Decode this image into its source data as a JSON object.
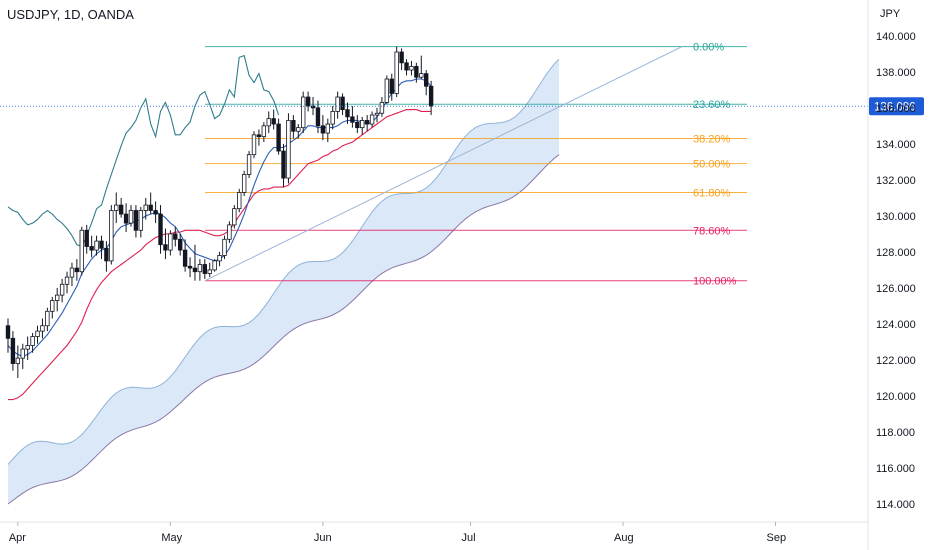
{
  "header": {
    "symbol_line": "USDJPY, 1D, OANDA"
  },
  "chart_data": {
    "type": "candlestick",
    "currency_label": "JPY",
    "price_badge": {
      "value": 136.086,
      "label": "136.086"
    },
    "ylim": [
      113,
      141.6
    ],
    "y_ticks": [
      {
        "v": 140,
        "label": "140.000"
      },
      {
        "v": 138,
        "label": "138.000"
      },
      {
        "v": 136,
        "label": "136.000"
      },
      {
        "v": 134,
        "label": "134.000"
      },
      {
        "v": 132,
        "label": "132.000"
      },
      {
        "v": 130,
        "label": "130.000"
      },
      {
        "v": 128,
        "label": "128.000"
      },
      {
        "v": 126,
        "label": "126.000"
      },
      {
        "v": 124,
        "label": "124.000"
      },
      {
        "v": 122,
        "label": "122.000"
      },
      {
        "v": 120,
        "label": "120.000"
      },
      {
        "v": 118,
        "label": "118.000"
      },
      {
        "v": 116,
        "label": "116.000"
      },
      {
        "v": 114,
        "label": "114.000"
      }
    ],
    "x_ticks": [
      {
        "label": "Apr",
        "i": 2
      },
      {
        "label": "May",
        "i": 33
      },
      {
        "label": "Jun",
        "i": 64
      },
      {
        "label": "Jul",
        "i": 94
      },
      {
        "label": "Aug",
        "i": 125
      },
      {
        "label": "Sep",
        "i": 156
      }
    ],
    "fib_levels": [
      {
        "label": "0.00%",
        "price": 139.4,
        "color": "#26a69a"
      },
      {
        "label": "23.60%",
        "price": 136.2,
        "color": "#26a69a"
      },
      {
        "label": "38.20%",
        "price": 134.3,
        "color": "#f7a21b"
      },
      {
        "label": "50.00%",
        "price": 132.9,
        "color": "#f7a21b"
      },
      {
        "label": "61.80%",
        "price": 131.3,
        "color": "#f7a21b"
      },
      {
        "label": "78.60%",
        "price": 129.2,
        "color": "#e91e63"
      },
      {
        "label": "100.00%",
        "price": 126.4,
        "color": "#e91e63"
      }
    ],
    "ohlc": [
      [
        123.9,
        124.3,
        122.4,
        123.2
      ],
      [
        123.2,
        123.6,
        121.4,
        121.8
      ],
      [
        121.8,
        122.8,
        121.0,
        122.1
      ],
      [
        122.1,
        122.9,
        121.5,
        122.6
      ],
      [
        122.6,
        123.3,
        122.0,
        122.8
      ],
      [
        122.8,
        123.5,
        122.4,
        123.3
      ],
      [
        123.3,
        123.9,
        122.9,
        123.6
      ],
      [
        123.6,
        124.3,
        123.2,
        123.9
      ],
      [
        123.9,
        124.9,
        123.6,
        124.7
      ],
      [
        124.7,
        125.5,
        124.3,
        125.3
      ],
      [
        125.3,
        126.0,
        124.7,
        125.6
      ],
      [
        125.6,
        126.5,
        125.2,
        126.2
      ],
      [
        126.2,
        126.9,
        125.7,
        126.6
      ],
      [
        126.6,
        127.4,
        126.1,
        127.1
      ],
      [
        127.1,
        127.6,
        126.4,
        126.9
      ],
      [
        126.9,
        129.4,
        126.7,
        129.2
      ],
      [
        129.2,
        129.5,
        127.9,
        128.3
      ],
      [
        128.3,
        128.9,
        127.7,
        128.1
      ],
      [
        128.1,
        128.9,
        127.8,
        128.6
      ],
      [
        128.6,
        128.9,
        127.6,
        128.2
      ],
      [
        128.2,
        128.6,
        126.9,
        127.5
      ],
      [
        127.5,
        130.6,
        127.3,
        130.3
      ],
      [
        130.3,
        131.3,
        129.6,
        130.6
      ],
      [
        130.6,
        131.0,
        129.9,
        130.1
      ],
      [
        130.1,
        130.7,
        129.1,
        129.6
      ],
      [
        129.6,
        130.6,
        129.4,
        130.3
      ],
      [
        130.3,
        130.6,
        128.8,
        129.2
      ],
      [
        129.2,
        130.5,
        128.8,
        130.3
      ],
      [
        130.3,
        131.0,
        129.8,
        130.6
      ],
      [
        130.6,
        131.3,
        130.1,
        130.3
      ],
      [
        130.3,
        130.8,
        129.6,
        130.1
      ],
      [
        130.1,
        130.6,
        127.9,
        128.4
      ],
      [
        128.4,
        129.3,
        127.6,
        128.1
      ],
      [
        128.1,
        129.2,
        127.8,
        129.0
      ],
      [
        129.0,
        129.4,
        128.3,
        128.7
      ],
      [
        128.7,
        129.0,
        127.8,
        128.1
      ],
      [
        128.1,
        128.7,
        126.9,
        127.2
      ],
      [
        127.2,
        127.7,
        126.6,
        127.1
      ],
      [
        127.1,
        128.4,
        126.4,
        126.9
      ],
      [
        126.9,
        127.6,
        126.4,
        127.3
      ],
      [
        127.3,
        127.6,
        126.5,
        126.8
      ],
      [
        126.8,
        127.4,
        126.6,
        127.0
      ],
      [
        127.0,
        127.6,
        126.9,
        127.5
      ],
      [
        127.5,
        128.0,
        127.2,
        127.8
      ],
      [
        127.8,
        128.9,
        127.6,
        128.7
      ],
      [
        128.7,
        129.7,
        128.5,
        129.5
      ],
      [
        129.5,
        130.6,
        129.3,
        130.4
      ],
      [
        130.4,
        131.5,
        130.2,
        131.3
      ],
      [
        131.3,
        132.5,
        131.1,
        132.3
      ],
      [
        132.3,
        133.6,
        132.1,
        133.4
      ],
      [
        133.4,
        134.7,
        133.2,
        134.5
      ],
      [
        134.5,
        134.8,
        133.9,
        134.4
      ],
      [
        134.4,
        135.2,
        134.1,
        135.0
      ],
      [
        135.0,
        135.8,
        134.6,
        135.4
      ],
      [
        135.4,
        135.9,
        134.8,
        135.1
      ],
      [
        135.1,
        135.4,
        133.4,
        133.6
      ],
      [
        133.6,
        134.0,
        131.6,
        132.1
      ],
      [
        132.1,
        135.7,
        131.8,
        135.3
      ],
      [
        135.3,
        135.6,
        134.3,
        134.7
      ],
      [
        134.7,
        135.1,
        134.3,
        134.9
      ],
      [
        134.9,
        136.9,
        134.6,
        136.6
      ],
      [
        136.6,
        136.9,
        135.8,
        136.1
      ],
      [
        136.1,
        136.6,
        135.6,
        136.0
      ],
      [
        136.0,
        136.4,
        134.6,
        135.0
      ],
      [
        135.0,
        135.6,
        134.2,
        134.6
      ],
      [
        134.6,
        135.4,
        134.1,
        135.1
      ],
      [
        135.1,
        136.1,
        134.8,
        135.8
      ],
      [
        135.8,
        136.9,
        135.4,
        136.6
      ],
      [
        136.6,
        136.8,
        135.6,
        135.9
      ],
      [
        135.9,
        136.3,
        135.1,
        135.5
      ],
      [
        135.5,
        136.1,
        134.9,
        135.2
      ],
      [
        135.2,
        135.6,
        134.6,
        134.9
      ],
      [
        134.9,
        135.5,
        134.5,
        135.3
      ],
      [
        135.3,
        135.6,
        134.7,
        135.1
      ],
      [
        135.1,
        135.8,
        134.9,
        135.6
      ],
      [
        135.6,
        136.0,
        135.2,
        135.7
      ],
      [
        135.7,
        136.6,
        135.5,
        136.3
      ],
      [
        136.3,
        137.8,
        136.2,
        137.6
      ],
      [
        137.6,
        137.9,
        136.4,
        136.8
      ],
      [
        136.8,
        139.4,
        136.6,
        139.1
      ],
      [
        139.1,
        139.3,
        138.1,
        138.5
      ],
      [
        138.5,
        138.7,
        137.8,
        138.1
      ],
      [
        138.1,
        138.6,
        137.8,
        138.3
      ],
      [
        138.3,
        138.5,
        137.4,
        137.7
      ],
      [
        137.7,
        138.9,
        137.6,
        137.9
      ],
      [
        137.9,
        138.1,
        136.7,
        137.2
      ],
      [
        137.2,
        137.5,
        135.6,
        136.1
      ]
    ],
    "ichimoku": {
      "note": "cloud and lines are visual overlays",
      "tenkan": [
        122.8,
        122.5,
        122.3,
        122.2,
        122.3,
        122.5,
        122.8,
        123.1,
        123.4,
        123.8,
        124.2,
        124.6,
        125.1,
        125.6,
        126.1,
        126.8,
        127.2,
        127.6,
        127.9,
        128.1,
        128.2,
        128.6,
        129.1,
        129.4,
        129.5,
        129.6,
        129.7,
        129.8,
        130.0,
        130.1,
        130.2,
        130.1,
        129.9,
        129.6,
        129.4,
        129.0,
        128.5,
        128.2,
        127.9,
        127.8,
        127.7,
        127.6,
        127.5,
        127.6,
        127.8,
        128.2,
        128.8,
        129.4,
        130.1,
        130.9,
        131.7,
        132.4,
        133.0,
        133.5,
        133.8,
        133.8,
        133.8,
        134.0,
        134.2,
        134.4,
        134.7,
        135.0,
        135.0,
        134.9,
        134.9,
        134.9,
        134.9,
        135.0,
        135.2,
        135.3,
        135.3,
        135.3,
        135.2,
        135.1,
        135.2,
        135.5,
        135.9,
        136.4,
        136.8,
        137.1,
        137.4,
        137.5,
        137.5,
        137.6,
        137.6,
        137.5,
        137.2
      ],
      "kijun": [
        119.8,
        119.8,
        119.9,
        120.1,
        120.4,
        120.7,
        121.0,
        121.3,
        121.6,
        121.9,
        122.2,
        122.5,
        122.8,
        123.2,
        123.6,
        124.1,
        124.8,
        125.4,
        125.9,
        126.3,
        126.6,
        126.9,
        127.1,
        127.3,
        127.5,
        127.7,
        127.9,
        128.1,
        128.4,
        128.6,
        128.8,
        128.9,
        129.0,
        129.0,
        129.1,
        129.1,
        129.2,
        129.2,
        129.2,
        129.2,
        129.1,
        129.0,
        128.9,
        128.9,
        129.0,
        129.2,
        129.6,
        130.0,
        130.4,
        130.8,
        131.2,
        131.4,
        131.5,
        131.5,
        131.6,
        131.6,
        131.6,
        131.7,
        132.0,
        132.3,
        132.6,
        132.9,
        133.0,
        133.1,
        133.3,
        133.4,
        133.6,
        133.7,
        133.9,
        134.0,
        134.1,
        134.3,
        134.5,
        134.7,
        134.9,
        135.1,
        135.3,
        135.5,
        135.6,
        135.7,
        135.8,
        135.9,
        135.9,
        135.9,
        135.8,
        135.8,
        135.8
      ],
      "lagging": [
        130.5,
        130.3,
        130.2,
        129.8,
        129.5,
        129.6,
        129.8,
        130.1,
        130.3,
        130.1,
        129.8,
        129.6,
        129.3,
        128.9,
        128.4,
        128.3,
        128.9,
        129.6,
        130.4,
        130.6,
        131.5,
        132.3,
        133.1,
        133.9,
        134.6,
        134.9,
        135.3,
        136.0,
        136.5,
        135.1,
        134.4,
        135.8,
        136.3,
        135.6,
        134.5,
        134.5,
        134.9,
        135.2,
        136.1,
        136.7,
        136.9,
        136.2,
        135.4,
        135.6,
        136.2,
        137.0,
        136.6,
        138.8,
        138.9,
        137.8,
        137.4,
        137.9,
        137.0,
        136.9,
        136.4,
        135.6
      ]
    }
  }
}
